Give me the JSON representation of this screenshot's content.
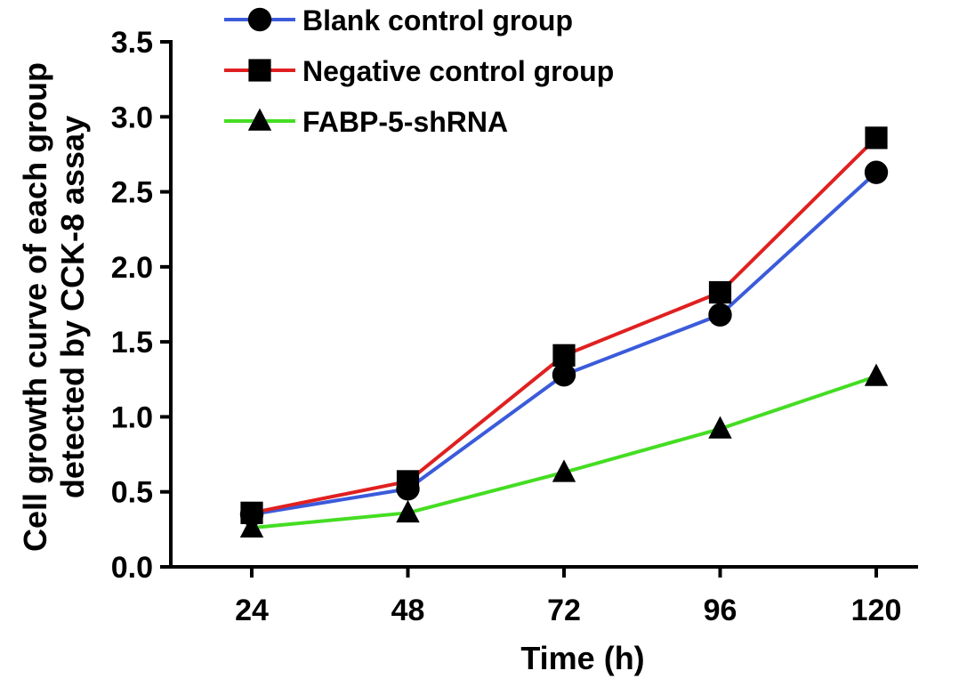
{
  "chart_data": {
    "type": "line",
    "title": "",
    "xlabel": "Time (h)",
    "ylabel": [
      "Cell growth curve of each group",
      "detected by CCK-8 assay"
    ],
    "categories": [
      "24",
      "48",
      "72",
      "96",
      "120"
    ],
    "ylim": [
      0,
      3.5
    ],
    "yticks": [
      "0.0",
      "0.5",
      "1.0",
      "1.5",
      "2.0",
      "2.5",
      "3.0",
      "3.5"
    ],
    "legend_position": "top",
    "grid": false,
    "series": [
      {
        "name": "Blank control group",
        "color": "#3b5bdb",
        "marker": "circle",
        "values": [
          0.35,
          0.52,
          1.28,
          1.68,
          2.63
        ]
      },
      {
        "name": "Negative control group",
        "color": "#e02020",
        "marker": "square",
        "values": [
          0.36,
          0.57,
          1.41,
          1.83,
          2.86
        ]
      },
      {
        "name": "FABP-5-shRNA",
        "color": "#44dd22",
        "marker": "triangle",
        "values": [
          0.26,
          0.36,
          0.63,
          0.92,
          1.27
        ]
      }
    ]
  }
}
